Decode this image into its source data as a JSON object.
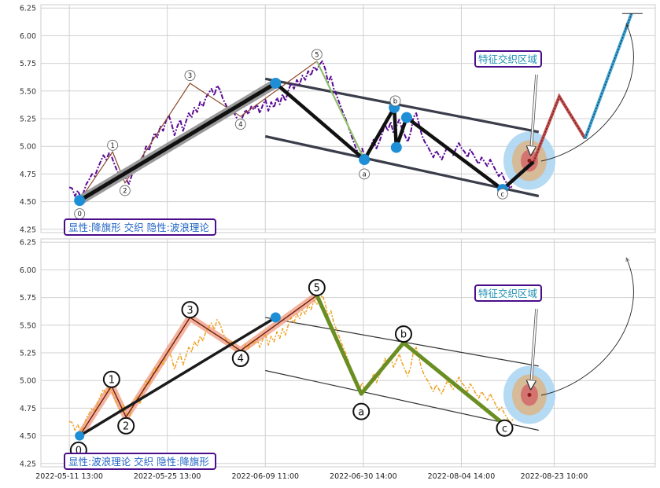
{
  "chart_data": [
    {
      "type": "line",
      "panel": "top",
      "ylim": [
        4.22,
        6.28
      ],
      "yticks": [
        4.25,
        4.5,
        4.75,
        5.0,
        5.25,
        5.5,
        5.75,
        6.0,
        6.25
      ],
      "grid": true,
      "annotation_box": "显性:降旗形 交织 隐性:波浪理论",
      "zone_label": "特征交织区域",
      "wave_labels": [
        {
          "label": "0",
          "x": 1.0,
          "y": 4.39
        },
        {
          "label": "1",
          "x": 4.2,
          "y": 5.01
        },
        {
          "label": "2",
          "x": 5.4,
          "y": 4.6
        },
        {
          "label": "3",
          "x": 11.7,
          "y": 5.64
        },
        {
          "label": "4",
          "x": 16.6,
          "y": 5.2
        },
        {
          "label": "5",
          "x": 24.0,
          "y": 5.83
        },
        {
          "label": "a",
          "x": 28.6,
          "y": 4.75
        },
        {
          "label": "b",
          "x": 31.6,
          "y": 5.41
        },
        {
          "label": "c",
          "x": 42.0,
          "y": 4.57
        }
      ]
    },
    {
      "type": "line",
      "panel": "bottom",
      "ylim": [
        4.22,
        6.28
      ],
      "yticks": [
        4.25,
        4.5,
        4.75,
        5.0,
        5.25,
        5.5,
        5.75,
        6.0,
        6.25
      ],
      "grid": true,
      "x_ticklabels": [
        "2022-05-11 13:00",
        "2022-05-25 13:00",
        "2022-06-09 11:00",
        "2022-06-30 14:00",
        "2022-08-04 14:00",
        "2022-08-23 10:00"
      ],
      "annotation_box": "显性:波浪理论 交织 隐性:降旗形",
      "zone_label": "特征交织区域",
      "wave_labels": [
        {
          "label": "0",
          "x": 0.9,
          "y": 4.37
        },
        {
          "label": "1",
          "x": 4.1,
          "y": 5.01
        },
        {
          "label": "2",
          "x": 5.5,
          "y": 4.59
        },
        {
          "label": "3",
          "x": 11.7,
          "y": 5.64
        },
        {
          "label": "4",
          "x": 16.6,
          "y": 5.2
        },
        {
          "label": "5",
          "x": 24.0,
          "y": 5.84
        },
        {
          "label": "a",
          "x": 28.3,
          "y": 4.72
        },
        {
          "label": "b",
          "x": 32.4,
          "y": 5.42
        },
        {
          "label": "c",
          "x": 42.2,
          "y": 4.57
        }
      ]
    }
  ],
  "series": {
    "price_x_range": [
      0,
      43
    ],
    "price": [
      4.63,
      4.62,
      4.55,
      4.6,
      4.54,
      4.58,
      4.66,
      4.7,
      4.75,
      4.73,
      4.8,
      4.86,
      4.92,
      4.88,
      4.94,
      4.9,
      4.83,
      4.77,
      4.73,
      4.78,
      4.7,
      4.66,
      4.74,
      4.8,
      4.86,
      4.79,
      4.91,
      5.0,
      4.96,
      5.04,
      5.12,
      5.08,
      5.18,
      5.14,
      5.23,
      5.28,
      5.2,
      5.1,
      5.18,
      5.24,
      5.14,
      5.22,
      5.3,
      5.26,
      5.35,
      5.31,
      5.4,
      5.36,
      5.44,
      5.48,
      5.52,
      5.46,
      5.55,
      5.51,
      5.43,
      5.38,
      5.32,
      5.36,
      5.3,
      5.25,
      5.21,
      5.27,
      5.33,
      5.29,
      5.36,
      5.33,
      5.38,
      5.3,
      5.37,
      5.42,
      5.32,
      5.4,
      5.35,
      5.44,
      5.38,
      5.47,
      5.41,
      5.5,
      5.57,
      5.52,
      5.6,
      5.56,
      5.64,
      5.6,
      5.68,
      5.64,
      5.72,
      5.69,
      5.74,
      5.77,
      5.7,
      5.58,
      5.63,
      5.52,
      5.46,
      5.39,
      5.32,
      5.26,
      5.19,
      5.11,
      5.04,
      4.97,
      4.92,
      4.98,
      4.9,
      4.94,
      5.0,
      5.06,
      4.98,
      5.04,
      5.11,
      5.2,
      5.14,
      5.22,
      5.12,
      5.18,
      5.24,
      5.16,
      5.1,
      5.04,
      5.12,
      5.26,
      5.3,
      5.2,
      5.1,
      5.04,
      5.0,
      4.95,
      4.9,
      4.96,
      4.92,
      4.88,
      4.94,
      5.0,
      4.96,
      4.92,
      4.98,
      5.03,
      4.98,
      4.95,
      4.9,
      4.97,
      4.93,
      4.88,
      4.84,
      4.9,
      4.86,
      4.82,
      4.88,
      4.83,
      4.78,
      4.73,
      4.76,
      4.7,
      4.66,
      4.62,
      4.65
    ],
    "top_flag_upper": [
      [
        19.0,
        5.61
      ],
      [
        45.5,
        5.13
      ]
    ],
    "top_flag_lower": [
      [
        19.0,
        5.09
      ],
      [
        45.5,
        4.55
      ]
    ],
    "top_thick_pole": [
      [
        1.0,
        4.51
      ],
      [
        20.0,
        5.57
      ]
    ],
    "top_black_path": [
      [
        20.0,
        5.57
      ],
      [
        28.6,
        4.88
      ],
      [
        31.5,
        5.35
      ],
      [
        31.7,
        4.99
      ],
      [
        32.7,
        5.26
      ],
      [
        42.0,
        4.61
      ],
      [
        45.0,
        4.86
      ]
    ],
    "top_dots": [
      [
        1.0,
        4.51
      ],
      [
        20.0,
        5.57
      ],
      [
        28.6,
        4.88
      ],
      [
        31.5,
        5.35
      ],
      [
        31.7,
        4.99
      ],
      [
        32.7,
        5.26
      ],
      [
        42.0,
        4.61
      ]
    ],
    "top_brown_zigzag": [
      [
        1.0,
        4.51
      ],
      [
        4.2,
        4.95
      ],
      [
        5.4,
        4.67
      ],
      [
        11.7,
        5.57
      ],
      [
        16.6,
        5.27
      ],
      [
        24.0,
        5.77
      ]
    ],
    "top_green_wave": [
      [
        24.0,
        5.77
      ],
      [
        28.6,
        4.88
      ]
    ],
    "top_projection_red": [
      [
        45.0,
        4.86
      ],
      [
        47.5,
        5.45
      ],
      [
        50.0,
        5.07
      ]
    ],
    "top_projection_blue": [
      [
        50.0,
        5.07
      ],
      [
        54.5,
        6.2
      ]
    ],
    "bottom_black_line": [
      [
        1.0,
        4.5
      ],
      [
        20.0,
        5.57
      ]
    ],
    "bottom_orange_zigzag": [
      [
        1.0,
        4.5
      ],
      [
        4.1,
        4.95
      ],
      [
        5.5,
        4.67
      ],
      [
        11.7,
        5.57
      ],
      [
        16.6,
        5.27
      ],
      [
        24.0,
        5.77
      ]
    ],
    "bottom_green_wave": [
      [
        24.0,
        5.77
      ],
      [
        28.3,
        4.88
      ],
      [
        32.4,
        5.34
      ],
      [
        42.2,
        4.6
      ]
    ],
    "bottom_flag_upper": [
      [
        19.0,
        5.57
      ],
      [
        45.5,
        5.13
      ]
    ],
    "bottom_flag_lower": [
      [
        19.0,
        5.09
      ],
      [
        45.5,
        4.55
      ]
    ],
    "bottom_dot": [
      20.0,
      5.57
    ],
    "x_tick_positions": [
      0,
      9.5,
      19.0,
      28.5,
      38.0,
      47.0
    ]
  }
}
